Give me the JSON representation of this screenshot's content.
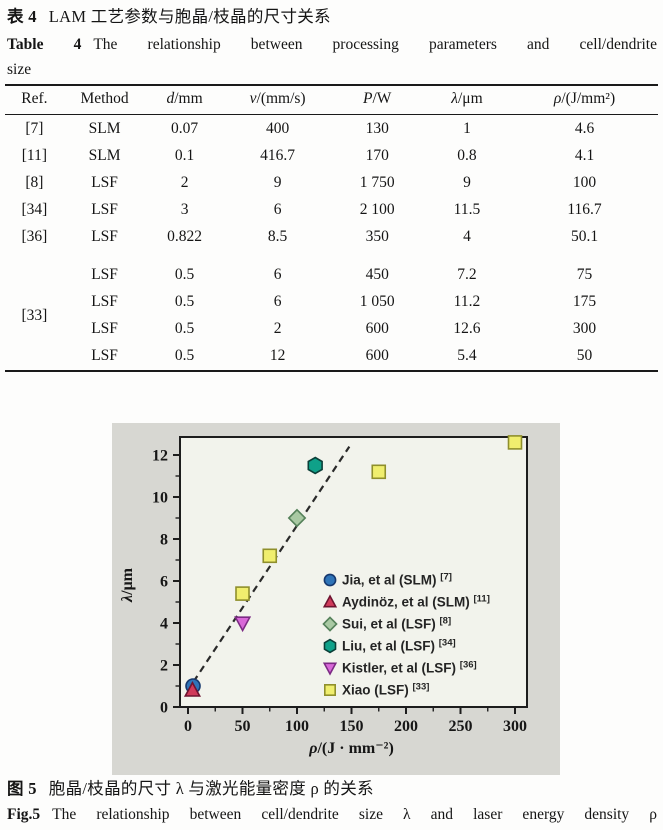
{
  "table_caption": {
    "zh_label": "表 4",
    "zh_text": "LAM 工艺参数与胞晶/枝晶的尺寸关系",
    "en_label": "Table 4",
    "en_line1": "The relationship between processing parameters and cell/dendrite",
    "en_line2": "size"
  },
  "table": {
    "col_widths": [
      "9%",
      "12.5%",
      "12%",
      "16.5%",
      "14%",
      "13.5%",
      "22.5%"
    ],
    "columns": [
      [
        {
          "t": "Ref."
        }
      ],
      [
        {
          "t": "Method"
        }
      ],
      [
        {
          "t": "d",
          "i": 1
        },
        {
          "t": "/mm"
        }
      ],
      [
        {
          "t": "v",
          "i": 1
        },
        {
          "t": "/(mm/s)"
        }
      ],
      [
        {
          "t": "P",
          "i": 1
        },
        {
          "t": "/W"
        }
      ],
      [
        {
          "t": "λ",
          "i": 1
        },
        {
          "t": "/μm"
        }
      ],
      [
        {
          "t": "ρ",
          "i": 1
        },
        {
          "t": "/(J/mm²)"
        }
      ]
    ],
    "rows": [
      {
        "ref": "[7]",
        "cells": [
          "SLM",
          "0.07",
          "400",
          "130",
          "1",
          "4.6"
        ]
      },
      {
        "ref": "[11]",
        "cells": [
          "SLM",
          "0.1",
          "416.7",
          "170",
          "0.8",
          "4.1"
        ]
      },
      {
        "ref": "[8]",
        "cells": [
          "LSF",
          "2",
          "9",
          "1 750",
          "9",
          "100"
        ]
      },
      {
        "ref": "[34]",
        "cells": [
          "LSF",
          "3",
          "6",
          "2 100",
          "11.5",
          "116.7"
        ]
      },
      {
        "ref": "[36]",
        "cells": [
          "LSF",
          "0.822",
          "8.5",
          "350",
          "4",
          "50.1"
        ]
      },
      {
        "ref": "[33]",
        "ref_rowspan": 4,
        "group_start": true,
        "cells": [
          "LSF",
          "0.5",
          "6",
          "450",
          "7.2",
          "75"
        ]
      },
      {
        "cells": [
          "LSF",
          "0.5",
          "6",
          "1 050",
          "11.2",
          "175"
        ]
      },
      {
        "cells": [
          "LSF",
          "0.5",
          "2",
          "600",
          "12.6",
          "300"
        ]
      },
      {
        "cells": [
          "LSF",
          "0.5",
          "12",
          "600",
          "5.4",
          "50"
        ]
      }
    ]
  },
  "figure_caption": {
    "zh_label": "图 5",
    "zh_text": "胞晶/枝晶的尺寸 λ 与激光能量密度 ρ 的关系",
    "en_label": "Fig.5",
    "en_text": "The relationship between cell/dendrite size λ and laser energy density ρ"
  },
  "chart_data": {
    "type": "scatter",
    "title": "",
    "xlabel": "ρ/(J · mm⁻²)",
    "ylabel": "λ/μm",
    "xlim": [
      0,
      300
    ],
    "ylim": [
      0,
      12.85
    ],
    "x_ticks": [
      0,
      50,
      100,
      150,
      200,
      250,
      300
    ],
    "x_minor_step": 25,
    "y_ticks": [
      0,
      2,
      4,
      6,
      8,
      10,
      12
    ],
    "y_minor_step": 1,
    "grid": false,
    "legend_position": "inside-right",
    "colors": {
      "axis": "#1d1d1d",
      "plot_bg": "#f2f3ec",
      "figure_bg": "#d7d7d2",
      "trend": "#2a2a2a"
    },
    "series": [
      {
        "name": "Jia, et al (SLM)",
        "ref": "[7]",
        "marker": "circle",
        "fill": "#2f74b8",
        "stroke": "#16386e",
        "points": [
          [
            4.6,
            1
          ]
        ]
      },
      {
        "name": "Aydinöz, et al (SLM)",
        "ref": "[11]",
        "marker": "triangle-up",
        "fill": "#d03a5a",
        "stroke": "#6e1430",
        "points": [
          [
            4.1,
            0.8
          ]
        ]
      },
      {
        "name": "Sui, et al (LSF)",
        "ref": "[8]",
        "marker": "diamond",
        "fill": "#a9c9a3",
        "stroke": "#55815a",
        "points": [
          [
            100,
            9
          ]
        ]
      },
      {
        "name": "Liu, et al (LSF)",
        "ref": "[34]",
        "marker": "hexagon",
        "fill": "#0fa189",
        "stroke": "#0b3f38",
        "points": [
          [
            116.7,
            11.5
          ]
        ]
      },
      {
        "name": "Kistler, et al (LSF)",
        "ref": "[36]",
        "marker": "triangle-down",
        "fill": "#d868d8",
        "stroke": "#7c2a84",
        "points": [
          [
            50.1,
            4
          ]
        ]
      },
      {
        "name": "Xiao (LSF)",
        "ref": "[33]",
        "marker": "square",
        "fill": "#f0ee6e",
        "stroke": "#8f8f2c",
        "points": [
          [
            50,
            5.4
          ],
          [
            75,
            7.2
          ],
          [
            175,
            11.2
          ],
          [
            300,
            12.6
          ]
        ]
      }
    ],
    "trend_line": {
      "style": "dashed",
      "color": "#2a2a2a",
      "from": [
        5,
        1.2
      ],
      "to": [
        148,
        12.4
      ]
    }
  }
}
